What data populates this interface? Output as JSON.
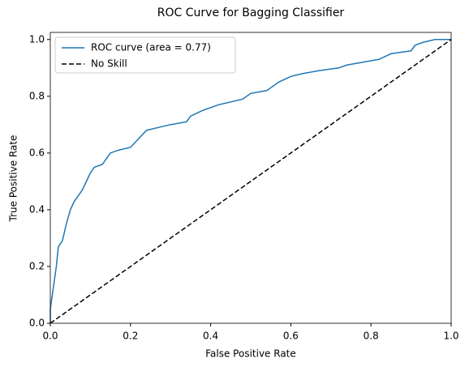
{
  "chart_data": {
    "type": "line",
    "title": "ROC Curve for Bagging Classifier",
    "x_label": "False Positive Rate",
    "y_label": "True Positive Rate",
    "xlim": [
      0,
      1
    ],
    "ylim": [
      0,
      1.025
    ],
    "xticks": [
      {
        "value": 0,
        "label": "0.0"
      },
      {
        "value": 0.2,
        "label": "0.2"
      },
      {
        "value": 0.4,
        "label": "0.4"
      },
      {
        "value": 0.6,
        "label": "0.6"
      },
      {
        "value": 0.8,
        "label": "0.8"
      },
      {
        "value": 1,
        "label": "1.0"
      }
    ],
    "yticks": [
      {
        "value": 0,
        "label": "0.0"
      },
      {
        "value": 0.2,
        "label": "0.2"
      },
      {
        "value": 0.4,
        "label": "0.4"
      },
      {
        "value": 0.6,
        "label": "0.6"
      },
      {
        "value": 0.8,
        "label": "0.8"
      },
      {
        "value": 1,
        "label": "1.0"
      }
    ],
    "legend": "upper left",
    "series": [
      {
        "name": "ROC curve (area = 0.77)",
        "color": "#1f77b4",
        "dash": false,
        "x": [
          0,
          0,
          0.005,
          0.01,
          0.015,
          0.02,
          0.03,
          0.04,
          0.05,
          0.06,
          0.07,
          0.08,
          0.09,
          0.1,
          0.11,
          0.13,
          0.14,
          0.15,
          0.17,
          0.2,
          0.22,
          0.24,
          0.27,
          0.3,
          0.34,
          0.35,
          0.38,
          0.42,
          0.45,
          0.48,
          0.5,
          0.54,
          0.57,
          0.6,
          0.63,
          0.67,
          0.72,
          0.74,
          0.78,
          0.82,
          0.85,
          0.9,
          0.91,
          0.93,
          0.96,
          1
        ],
        "values": [
          0,
          0.05,
          0.1,
          0.15,
          0.2,
          0.27,
          0.29,
          0.35,
          0.4,
          0.43,
          0.45,
          0.47,
          0.5,
          0.53,
          0.55,
          0.56,
          0.58,
          0.6,
          0.61,
          0.62,
          0.65,
          0.68,
          0.69,
          0.7,
          0.71,
          0.73,
          0.75,
          0.77,
          0.78,
          0.79,
          0.81,
          0.82,
          0.85,
          0.87,
          0.88,
          0.89,
          0.9,
          0.91,
          0.92,
          0.93,
          0.95,
          0.96,
          0.98,
          0.99,
          1,
          1
        ]
      },
      {
        "name": "No Skill",
        "color": "#000000",
        "dash": true,
        "x": [
          0,
          1
        ],
        "values": [
          0,
          1
        ]
      }
    ]
  }
}
